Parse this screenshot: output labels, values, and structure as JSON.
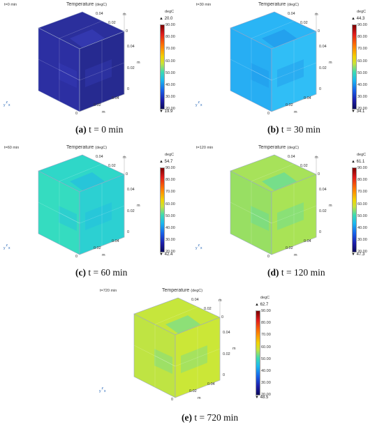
{
  "plot_title": "Temperature",
  "plot_unit": "(degC)",
  "colorbar_unit": "degC",
  "colorbar_ticks": [
    "90.00",
    "80.00",
    "70.00",
    "60.00",
    "50.00",
    "40.00",
    "30.00",
    "20.00"
  ],
  "axis_unit": "m",
  "axis_ticks": {
    "zero": "0",
    "mid": "0.02",
    "max": "0.04"
  },
  "triad": {
    "y": "y",
    "z": "z",
    "x": "x"
  },
  "panels": [
    {
      "time": "t=0 min",
      "max": "20.0",
      "min": "19.9",
      "caption_letter": "(a)",
      "caption_text": "t = 0 min",
      "colors": {
        "top": "#2b2f9c",
        "left": "#2c2fa2",
        "right": "#262a90",
        "inner": "#3a3fbf"
      }
    },
    {
      "time": "t=30 min",
      "max": "44.3",
      "min": "34.1",
      "caption_letter": "(b)",
      "caption_text": "t = 30 min",
      "colors": {
        "top": "#2ab5f5",
        "left": "#27aef3",
        "right": "#30bef6",
        "inner": "#1e8fe8"
      }
    },
    {
      "time": "t=60 min",
      "max": "54.7",
      "min": "42.4",
      "caption_letter": "(c)",
      "caption_text": "t = 60 min",
      "colors": {
        "top": "#2fd7c8",
        "left": "#35dcc0",
        "right": "#2cd0d2",
        "inner": "#20b6e8"
      }
    },
    {
      "time": "t=120 min",
      "max": "61.1",
      "min": "47.3",
      "caption_letter": "(d)",
      "caption_text": "t = 120 min",
      "colors": {
        "top": "#a7e25a",
        "left": "#98df63",
        "right": "#a9e356",
        "inner": "#4fdab3"
      }
    },
    {
      "time": "t=720 min",
      "max": "62.7",
      "min": "48.5",
      "caption_letter": "(e)",
      "caption_text": "t = 720 min",
      "colors": {
        "top": "#c6e63c",
        "left": "#bfe443",
        "right": "#cbe737",
        "inner": "#5fdba8"
      }
    }
  ]
}
